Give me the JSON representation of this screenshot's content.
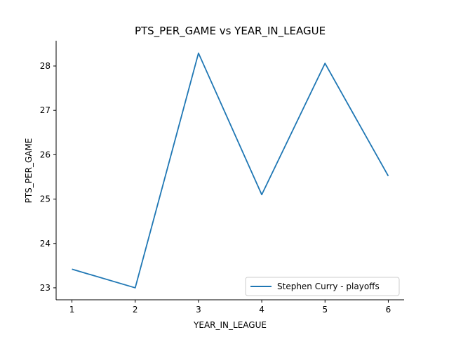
{
  "chart_data": {
    "type": "line",
    "title": "PTS_PER_GAME vs YEAR_IN_LEAGUE",
    "xlabel": "YEAR_IN_LEAGUE",
    "ylabel": "PTS_PER_GAME",
    "x": [
      1,
      2,
      3,
      4,
      5,
      6
    ],
    "xticks": [
      "1",
      "2",
      "3",
      "4",
      "5",
      "6"
    ],
    "yticks": [
      "23",
      "24",
      "25",
      "26",
      "27",
      "28"
    ],
    "xlim": [
      0.75,
      6.25
    ],
    "ylim": [
      22.73,
      28.57
    ],
    "grid": false,
    "legend_position": "lower-right",
    "series": [
      {
        "name": "Stephen Curry - playoffs",
        "color": "#1f77b4",
        "values": [
          23.42,
          23.0,
          28.29,
          25.1,
          28.06,
          25.52
        ]
      }
    ]
  }
}
